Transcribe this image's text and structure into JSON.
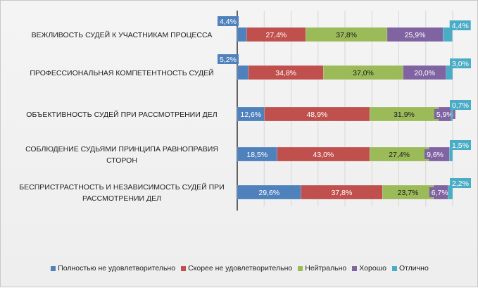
{
  "chart_data": {
    "type": "bar",
    "orientation": "horizontal",
    "stacked": "percent",
    "categories": [
      "ВЕЖЛИВОСТЬ СУДЕЙ К УЧАСТНИКАМ ПРОЦЕССА",
      "ПРОФЕССИОНАЛЬНАЯ КОМПЕТЕНТНОСТЬ СУДЕЙ",
      "ОБЪЕКТИВНОСТЬ СУДЕЙ ПРИ РАССМОТРЕНИИ ДЕЛ",
      "СОБЛЮДЕНИЕ СУДЬЯМИ ПРИНЦИПА РАВНОПРАВИЯ СТОРОН",
      "БЕСПРИСТРАСТНОСТЬ И НЕЗАВИСИМОСТЬ СУДЕЙ ПРИ РАССМОТРЕНИИ ДЕЛ"
    ],
    "category_lines": [
      [
        "ВЕЖЛИВОСТЬ СУДЕЙ К УЧАСТНИКАМ ПРОЦЕССА"
      ],
      [
        "ПРОФЕССИОНАЛЬНАЯ КОМПЕТЕНТНОСТЬ СУДЕЙ"
      ],
      [
        "ОБЪЕКТИВНОСТЬ СУДЕЙ ПРИ РАССМОТРЕНИИ ДЕЛ"
      ],
      [
        "СОБЛЮДЕНИЕ СУДЬЯМИ ПРИНЦИПА РАВНОПРАВИЯ",
        "СТОРОН"
      ],
      [
        "БЕСПРИСТРАСТНОСТЬ И НЕЗАВИСИМОСТЬ СУДЕЙ ПРИ",
        "РАССМОТРЕНИИ ДЕЛ"
      ]
    ],
    "series": [
      {
        "name": "Полностью не удовлетворительно",
        "color": "#4f81bd",
        "values": [
          4.4,
          5.2,
          12.6,
          18.5,
          29.6
        ],
        "labels": [
          "4,4%",
          "5,2%",
          "12,6%",
          "18,5%",
          "29,6%"
        ]
      },
      {
        "name": "Скорее не удовлетворительно",
        "color": "#c0504d",
        "values": [
          27.4,
          34.8,
          48.9,
          43.0,
          37.8
        ],
        "labels": [
          "27,4%",
          "34,8%",
          "48,9%",
          "43,0%",
          "37,8%"
        ]
      },
      {
        "name": "Нейтрально",
        "color": "#9bbb59",
        "values": [
          37.8,
          37.0,
          31.9,
          27.4,
          23.7
        ],
        "labels": [
          "37,8%",
          "37,0%",
          "31,9%",
          "27,4%",
          "23,7%"
        ]
      },
      {
        "name": "Хорошо",
        "color": "#8064a2",
        "values": [
          25.9,
          20.0,
          5.9,
          9.6,
          6.7
        ],
        "labels": [
          "25,9%",
          "20,0%",
          "5,9%",
          "9,6%",
          "6,7%"
        ]
      },
      {
        "name": "Отлично",
        "color": "#4bacc6",
        "values": [
          4.4,
          3.0,
          0.7,
          1.5,
          2.2
        ],
        "labels": [
          "4,4%",
          "3,0%",
          "0,7%",
          "1,5%",
          "2,2%"
        ]
      }
    ],
    "xlim": [
      0,
      100
    ],
    "grid": true,
    "legend_position": "bottom"
  }
}
